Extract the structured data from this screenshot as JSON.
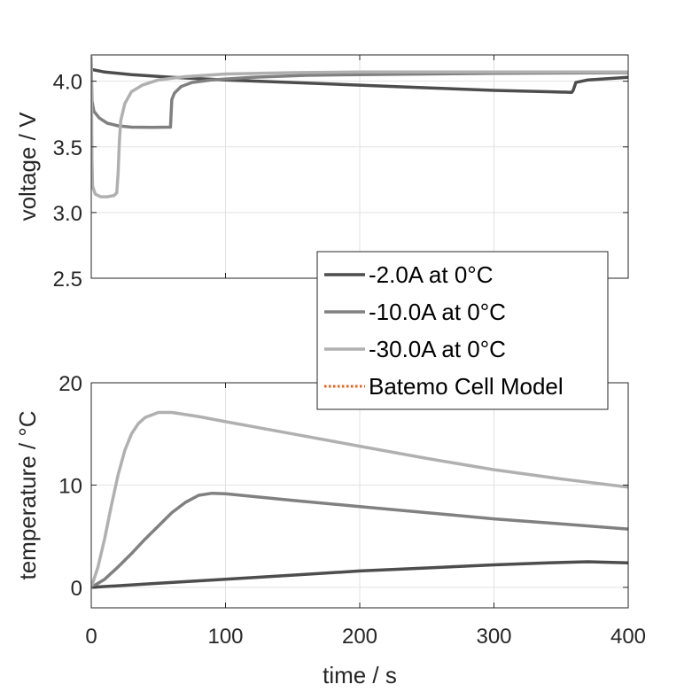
{
  "chart_data": [
    {
      "type": "line",
      "title": "",
      "xlabel": "",
      "ylabel": "voltage / V",
      "xlim": [
        0,
        400
      ],
      "ylim": [
        2.5,
        4.2
      ],
      "xticks": [
        0,
        100,
        200,
        300,
        400
      ],
      "yticks": [
        2.5,
        3.0,
        3.5,
        4.0
      ],
      "ytick_labels": [
        "2.5",
        "3.0",
        "3.5",
        "4.0"
      ],
      "grid": true,
      "series": [
        {
          "name": "-2.0A at 0°C",
          "color": "#4d4d4d",
          "points": [
            [
              0,
              4.09
            ],
            [
              10,
              4.07
            ],
            [
              30,
              4.05
            ],
            [
              60,
              4.03
            ],
            [
              100,
              4.01
            ],
            [
              150,
              3.99
            ],
            [
              200,
              3.97
            ],
            [
              250,
              3.95
            ],
            [
              300,
              3.93
            ],
            [
              340,
              3.92
            ],
            [
              358,
              3.915
            ],
            [
              359,
              3.93
            ],
            [
              361,
              3.99
            ],
            [
              370,
              4.01
            ],
            [
              400,
              4.03
            ]
          ]
        },
        {
          "name": "-10.0A at 0°C",
          "color": "#808080",
          "points": [
            [
              0,
              4.13
            ],
            [
              0.5,
              3.85
            ],
            [
              2,
              3.77
            ],
            [
              6,
              3.72
            ],
            [
              12,
              3.68
            ],
            [
              20,
              3.66
            ],
            [
              30,
              3.65
            ],
            [
              45,
              3.648
            ],
            [
              59,
              3.65
            ],
            [
              60,
              3.86
            ],
            [
              62,
              3.91
            ],
            [
              67,
              3.96
            ],
            [
              75,
              3.99
            ],
            [
              90,
              4.01
            ],
            [
              120,
              4.03
            ],
            [
              160,
              4.045
            ],
            [
              200,
              4.05
            ],
            [
              300,
              4.06
            ],
            [
              400,
              4.065
            ]
          ]
        },
        {
          "name": "-30.0A at 0°C",
          "color": "#b0b0b0",
          "points": [
            [
              0,
              4.18
            ],
            [
              0.5,
              3.4
            ],
            [
              1,
              3.2
            ],
            [
              3,
              3.14
            ],
            [
              7,
              3.12
            ],
            [
              12,
              3.12
            ],
            [
              17,
              3.13
            ],
            [
              19,
              3.15
            ],
            [
              20,
              3.3
            ],
            [
              21,
              3.55
            ],
            [
              22,
              3.7
            ],
            [
              25,
              3.83
            ],
            [
              30,
              3.92
            ],
            [
              38,
              3.97
            ],
            [
              50,
              4.01
            ],
            [
              70,
              4.035
            ],
            [
              100,
              4.055
            ],
            [
              150,
              4.065
            ],
            [
              200,
              4.07
            ],
            [
              400,
              4.07
            ]
          ]
        }
      ]
    },
    {
      "type": "line",
      "title": "",
      "xlabel": "time / s",
      "ylabel": "temperature / °C",
      "xlim": [
        0,
        400
      ],
      "ylim": [
        -2,
        20
      ],
      "xticks": [
        0,
        100,
        200,
        300,
        400
      ],
      "yticks": [
        0,
        10,
        20
      ],
      "ytick_labels": [
        "0",
        "10",
        "20"
      ],
      "grid": true,
      "series": [
        {
          "name": "-2.0A at 0°C",
          "color": "#4d4d4d",
          "points": [
            [
              0,
              0
            ],
            [
              50,
              0.4
            ],
            [
              100,
              0.8
            ],
            [
              150,
              1.2
            ],
            [
              200,
              1.6
            ],
            [
              250,
              1.9
            ],
            [
              300,
              2.2
            ],
            [
              340,
              2.4
            ],
            [
              370,
              2.5
            ],
            [
              400,
              2.4
            ]
          ]
        },
        {
          "name": "-10.0A at 0°C",
          "color": "#808080",
          "points": [
            [
              0,
              0
            ],
            [
              10,
              0.8
            ],
            [
              20,
              2
            ],
            [
              30,
              3.3
            ],
            [
              40,
              4.7
            ],
            [
              50,
              6
            ],
            [
              60,
              7.3
            ],
            [
              70,
              8.3
            ],
            [
              80,
              9
            ],
            [
              90,
              9.2
            ],
            [
              100,
              9.15
            ],
            [
              150,
              8.5
            ],
            [
              200,
              7.9
            ],
            [
              250,
              7.3
            ],
            [
              300,
              6.7
            ],
            [
              350,
              6.2
            ],
            [
              400,
              5.7
            ]
          ]
        },
        {
          "name": "-30.0A at 0°C",
          "color": "#b0b0b0",
          "points": [
            [
              0,
              0
            ],
            [
              5,
              2
            ],
            [
              10,
              4.8
            ],
            [
              15,
              8
            ],
            [
              20,
              11
            ],
            [
              25,
              13.4
            ],
            [
              30,
              15
            ],
            [
              35,
              16
            ],
            [
              40,
              16.6
            ],
            [
              50,
              17.1
            ],
            [
              60,
              17.1
            ],
            [
              80,
              16.7
            ],
            [
              100,
              16.2
            ],
            [
              150,
              15
            ],
            [
              200,
              13.8
            ],
            [
              250,
              12.6
            ],
            [
              300,
              11.5
            ],
            [
              350,
              10.6
            ],
            [
              400,
              9.8
            ]
          ]
        }
      ]
    }
  ],
  "legend": {
    "placement": "center-right",
    "entries": [
      {
        "label": "-2.0A at 0°C",
        "color": "#4d4d4d",
        "style": "solid"
      },
      {
        "label": "-10.0A at 0°C",
        "color": "#808080",
        "style": "solid"
      },
      {
        "label": "-30.0A at 0°C",
        "color": "#b0b0b0",
        "style": "solid"
      },
      {
        "label": "Batemo Cell Model",
        "color": "#e8621a",
        "style": "dotted"
      }
    ]
  }
}
